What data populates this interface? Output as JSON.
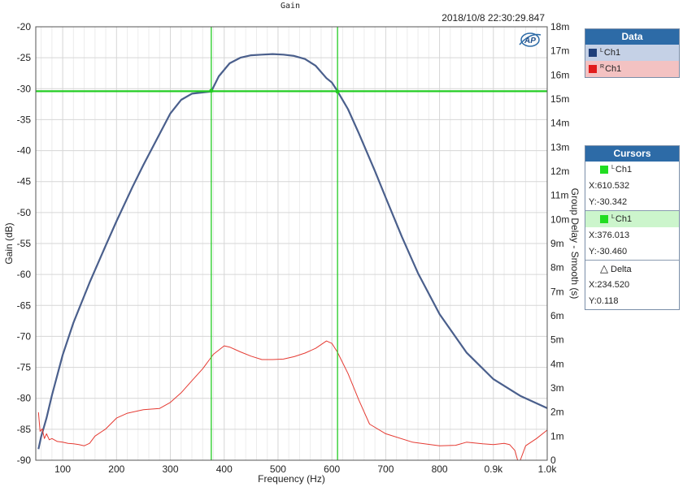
{
  "header": {
    "title": "Gain",
    "timestamp": "2018/10/8 22:30:29.847",
    "logo_text": "AP"
  },
  "data_panel": {
    "title": "Data",
    "items": [
      {
        "sup": "L",
        "label": "Ch1",
        "color": "#1f3f7a",
        "bg": "#c5d1e6"
      },
      {
        "sup": "R",
        "label": "Ch1",
        "color": "#e11b1b",
        "bg": "#f3c2c2"
      }
    ]
  },
  "cursors_panel": {
    "title": "Cursors",
    "cursor1": {
      "sup": "L",
      "label": "Ch1",
      "x": "X:610.532",
      "y": "Y:-30.342",
      "color": "#22dd22"
    },
    "cursor2": {
      "sup": "L",
      "label": "Ch1",
      "x": "X:376.013",
      "y": "Y:-30.460",
      "color": "#22dd22",
      "bg": "#ccf5cc"
    },
    "delta": {
      "label": "Delta",
      "x": "X:234.520",
      "y": "Y:0.118"
    }
  },
  "chart_data": {
    "type": "line",
    "xlabel": "Frequency (Hz)",
    "ylabel": "Gain (dB)",
    "y2label": "Group Delay - Smooth (s)",
    "xlim": [
      50,
      1000
    ],
    "ylim": [
      -90,
      -20
    ],
    "y2lim": [
      0,
      0.018
    ],
    "x_ticks": [
      100,
      200,
      300,
      400,
      500,
      600,
      700,
      800,
      900,
      1000
    ],
    "x_tick_labels": [
      "100",
      "200",
      "300",
      "400",
      "500",
      "600",
      "700",
      "800",
      "0.9k",
      "1.0k"
    ],
    "y_ticks": [
      -20,
      -25,
      -30,
      -35,
      -40,
      -45,
      -50,
      -55,
      -60,
      -65,
      -70,
      -75,
      -80,
      -85,
      -90
    ],
    "y2_ticks": [
      0.018,
      0.017,
      0.016,
      0.015,
      0.014,
      0.013,
      0.012,
      0.011,
      0.01,
      0.009,
      0.008,
      0.007,
      0.006,
      0.005,
      0.004,
      0.003,
      0.002,
      0.001,
      0
    ],
    "y2_tick_labels": [
      "18m",
      "17m",
      "16m",
      "15m",
      "14m",
      "13m",
      "12m",
      "11m",
      "10m",
      "9m",
      "8m",
      "7m",
      "6m",
      "5m",
      "4m",
      "3m",
      "2m",
      "1m",
      "0"
    ],
    "grid": true,
    "series": [
      {
        "axis": "left",
        "color": "#4a5f8c",
        "x": [
          55,
          60,
          70,
          80,
          100,
          120,
          150,
          180,
          200,
          230,
          250,
          280,
          300,
          320,
          340,
          360,
          376,
          390,
          410,
          430,
          450,
          470,
          490,
          510,
          530,
          550,
          570,
          590,
          600,
          610,
          630,
          650,
          680,
          700,
          730,
          760,
          800,
          850,
          900,
          950,
          1000
        ],
        "y": [
          -88.2,
          -86.2,
          -83.2,
          -79.5,
          -73.0,
          -67.8,
          -61.3,
          -55.3,
          -51.4,
          -45.8,
          -42.3,
          -37.3,
          -34.0,
          -31.8,
          -30.8,
          -30.6,
          -30.46,
          -28.0,
          -25.9,
          -25.0,
          -24.6,
          -24.5,
          -24.4,
          -24.5,
          -24.7,
          -25.2,
          -26.3,
          -28.3,
          -29.0,
          -30.34,
          -33.3,
          -37.2,
          -43.3,
          -47.6,
          -53.9,
          -59.8,
          -66.4,
          -72.6,
          -76.9,
          -79.6,
          -81.6
        ]
      },
      {
        "axis": "right",
        "color": "#e53a32",
        "x": [
          55,
          58,
          62,
          66,
          70,
          75,
          80,
          90,
          100,
          110,
          120,
          130,
          140,
          150,
          160,
          180,
          200,
          220,
          250,
          280,
          300,
          320,
          340,
          360,
          380,
          400,
          410,
          430,
          450,
          470,
          490,
          510,
          530,
          550,
          570,
          590,
          600,
          610,
          630,
          650,
          670,
          700,
          750,
          800,
          830,
          850,
          880,
          900,
          920,
          930,
          940,
          945,
          950,
          960,
          980,
          1000
        ],
        "y": [
          0.00199,
          0.0012,
          0.0013,
          0.0009,
          0.0011,
          0.00085,
          0.0009,
          0.00078,
          0.00075,
          0.0007,
          0.00068,
          0.00065,
          0.0006,
          0.0007,
          0.001,
          0.0013,
          0.00175,
          0.00195,
          0.0021,
          0.00215,
          0.0024,
          0.0028,
          0.0033,
          0.0038,
          0.0044,
          0.00475,
          0.0047,
          0.0045,
          0.00432,
          0.00418,
          0.00418,
          0.0042,
          0.0043,
          0.00445,
          0.00465,
          0.00495,
          0.00485,
          0.0045,
          0.0036,
          0.0025,
          0.0015,
          0.0011,
          0.00075,
          0.0006,
          0.00062,
          0.00075,
          0.00068,
          0.00065,
          0.0007,
          0.00065,
          0.0004,
          0.0,
          0.0,
          0.0006,
          0.0009,
          0.00125
        ]
      }
    ],
    "cursors": {
      "vertical": [
        376.013,
        610.532
      ],
      "horizontal": [
        -30.46,
        -30.342
      ],
      "color": "#22cc22"
    }
  }
}
